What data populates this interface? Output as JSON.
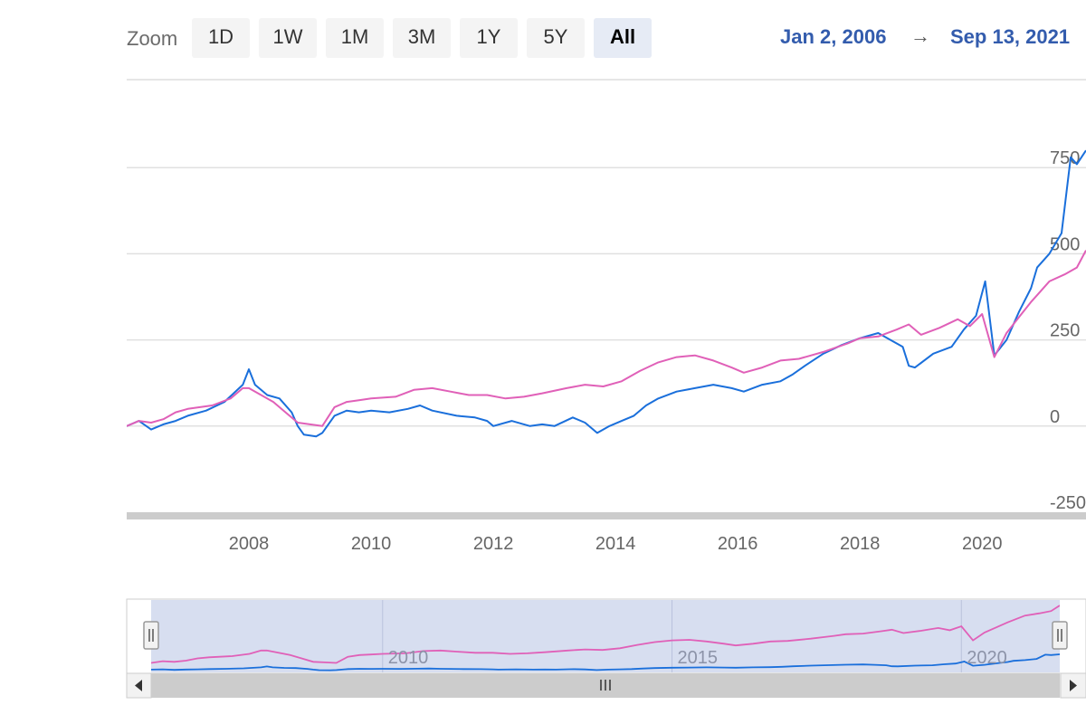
{
  "zoom": {
    "label": "Zoom",
    "buttons": [
      {
        "label": "1D",
        "selected": false
      },
      {
        "label": "1W",
        "selected": false
      },
      {
        "label": "1M",
        "selected": false
      },
      {
        "label": "3M",
        "selected": false
      },
      {
        "label": "1Y",
        "selected": false
      },
      {
        "label": "5Y",
        "selected": false
      },
      {
        "label": "All",
        "selected": true
      }
    ]
  },
  "range": {
    "start": "Jan 2, 2006",
    "arrow": "→",
    "end": "Sep 13, 2021"
  },
  "colors": {
    "series_blue": "#1a6fdb",
    "series_pink": "#e060b8",
    "navigator_fill": "#d3daee",
    "accent_text": "#335cad"
  },
  "chart_data": {
    "type": "line",
    "xlim": [
      2006.0,
      2021.7
    ],
    "ylim": [
      -250,
      1000
    ],
    "y_ticks": [
      {
        "value": -250,
        "label": "-250"
      },
      {
        "value": 0,
        "label": "0"
      },
      {
        "value": 250,
        "label": "250"
      },
      {
        "value": 500,
        "label": "500"
      },
      {
        "value": 750,
        "label": "750"
      }
    ],
    "x_ticks": [
      {
        "value": 2008,
        "label": "2008"
      },
      {
        "value": 2010,
        "label": "2010"
      },
      {
        "value": 2012,
        "label": "2012"
      },
      {
        "value": 2014,
        "label": "2014"
      },
      {
        "value": 2016,
        "label": "2016"
      },
      {
        "value": 2018,
        "label": "2018"
      },
      {
        "value": 2020,
        "label": "2020"
      }
    ],
    "grid": true,
    "legend": "none",
    "series": [
      {
        "color": "#1a6fdb",
        "points": [
          [
            2006.0,
            0
          ],
          [
            2006.2,
            15
          ],
          [
            2006.4,
            -10
          ],
          [
            2006.6,
            5
          ],
          [
            2006.8,
            15
          ],
          [
            2007.0,
            30
          ],
          [
            2007.3,
            45
          ],
          [
            2007.6,
            70
          ],
          [
            2007.9,
            120
          ],
          [
            2008.0,
            165
          ],
          [
            2008.1,
            120
          ],
          [
            2008.3,
            90
          ],
          [
            2008.5,
            80
          ],
          [
            2008.7,
            40
          ],
          [
            2008.8,
            0
          ],
          [
            2008.9,
            -25
          ],
          [
            2009.1,
            -30
          ],
          [
            2009.2,
            -20
          ],
          [
            2009.4,
            30
          ],
          [
            2009.6,
            45
          ],
          [
            2009.8,
            40
          ],
          [
            2010.0,
            45
          ],
          [
            2010.3,
            40
          ],
          [
            2010.6,
            50
          ],
          [
            2010.8,
            60
          ],
          [
            2011.0,
            45
          ],
          [
            2011.4,
            30
          ],
          [
            2011.7,
            25
          ],
          [
            2011.9,
            15
          ],
          [
            2012.0,
            0
          ],
          [
            2012.3,
            15
          ],
          [
            2012.6,
            0
          ],
          [
            2012.8,
            5
          ],
          [
            2013.0,
            0
          ],
          [
            2013.3,
            25
          ],
          [
            2013.5,
            10
          ],
          [
            2013.7,
            -20
          ],
          [
            2013.9,
            0
          ],
          [
            2014.1,
            15
          ],
          [
            2014.3,
            30
          ],
          [
            2014.5,
            60
          ],
          [
            2014.7,
            80
          ],
          [
            2015.0,
            100
          ],
          [
            2015.3,
            110
          ],
          [
            2015.6,
            120
          ],
          [
            2015.9,
            110
          ],
          [
            2016.1,
            100
          ],
          [
            2016.4,
            120
          ],
          [
            2016.7,
            130
          ],
          [
            2016.9,
            150
          ],
          [
            2017.1,
            175
          ],
          [
            2017.4,
            210
          ],
          [
            2017.7,
            235
          ],
          [
            2018.0,
            255
          ],
          [
            2018.3,
            270
          ],
          [
            2018.5,
            250
          ],
          [
            2018.7,
            230
          ],
          [
            2018.8,
            175
          ],
          [
            2018.9,
            170
          ],
          [
            2019.2,
            210
          ],
          [
            2019.5,
            230
          ],
          [
            2019.7,
            280
          ],
          [
            2019.9,
            320
          ],
          [
            2020.05,
            420
          ],
          [
            2020.2,
            205
          ],
          [
            2020.4,
            250
          ],
          [
            2020.6,
            330
          ],
          [
            2020.8,
            400
          ],
          [
            2020.9,
            460
          ],
          [
            2021.1,
            500
          ],
          [
            2021.3,
            560
          ],
          [
            2021.45,
            780
          ],
          [
            2021.55,
            760
          ],
          [
            2021.7,
            800
          ]
        ]
      },
      {
        "color": "#e060b8",
        "points": [
          [
            2006.0,
            0
          ],
          [
            2006.2,
            15
          ],
          [
            2006.4,
            10
          ],
          [
            2006.6,
            20
          ],
          [
            2006.8,
            40
          ],
          [
            2007.0,
            50
          ],
          [
            2007.4,
            60
          ],
          [
            2007.7,
            80
          ],
          [
            2007.9,
            110
          ],
          [
            2008.0,
            110
          ],
          [
            2008.2,
            90
          ],
          [
            2008.4,
            70
          ],
          [
            2008.6,
            40
          ],
          [
            2008.8,
            10
          ],
          [
            2009.0,
            5
          ],
          [
            2009.2,
            0
          ],
          [
            2009.4,
            55
          ],
          [
            2009.6,
            70
          ],
          [
            2009.8,
            75
          ],
          [
            2010.0,
            80
          ],
          [
            2010.4,
            85
          ],
          [
            2010.7,
            105
          ],
          [
            2011.0,
            110
          ],
          [
            2011.3,
            100
          ],
          [
            2011.6,
            90
          ],
          [
            2011.9,
            90
          ],
          [
            2012.2,
            80
          ],
          [
            2012.5,
            85
          ],
          [
            2012.8,
            95
          ],
          [
            2013.2,
            110
          ],
          [
            2013.5,
            120
          ],
          [
            2013.8,
            115
          ],
          [
            2014.1,
            130
          ],
          [
            2014.4,
            160
          ],
          [
            2014.7,
            185
          ],
          [
            2015.0,
            200
          ],
          [
            2015.3,
            205
          ],
          [
            2015.6,
            190
          ],
          [
            2015.9,
            170
          ],
          [
            2016.1,
            155
          ],
          [
            2016.4,
            170
          ],
          [
            2016.7,
            190
          ],
          [
            2017.0,
            195
          ],
          [
            2017.4,
            215
          ],
          [
            2017.8,
            240
          ],
          [
            2018.0,
            255
          ],
          [
            2018.3,
            260
          ],
          [
            2018.6,
            280
          ],
          [
            2018.8,
            295
          ],
          [
            2019.0,
            265
          ],
          [
            2019.3,
            285
          ],
          [
            2019.6,
            310
          ],
          [
            2019.8,
            290
          ],
          [
            2020.0,
            325
          ],
          [
            2020.2,
            200
          ],
          [
            2020.4,
            270
          ],
          [
            2020.6,
            315
          ],
          [
            2020.8,
            360
          ],
          [
            2020.95,
            390
          ],
          [
            2021.1,
            420
          ],
          [
            2021.35,
            440
          ],
          [
            2021.55,
            460
          ],
          [
            2021.7,
            510
          ]
        ]
      }
    ]
  },
  "navigator": {
    "tick_labels": [
      "2010",
      "2015",
      "2020"
    ],
    "scrollbar_grip_icon": "grip-icon",
    "left_arrow_icon": "arrow-left-icon",
    "right_arrow_icon": "arrow-right-icon",
    "handle_icon": "handle-grip-icon"
  }
}
